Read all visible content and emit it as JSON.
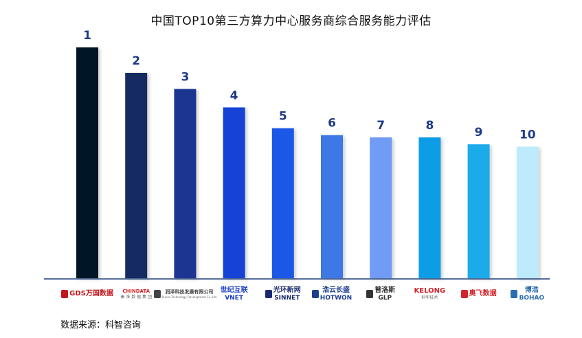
{
  "chart_data": {
    "type": "bar",
    "title": "中国TOP10第三方算力中心服务商综合服务能力评估",
    "categories": [
      "GDS万国数据",
      "CHINDATA 秦淮数据集团",
      "润泽科技发展有限公司",
      "世纪互联 VNET",
      "光环新网 SINNET",
      "浩云长盛 HOTWON",
      "普洛斯 GLP",
      "KELONG 科华技术",
      "奥飞数据",
      "博浩 BOHAO"
    ],
    "values": [
      100,
      89,
      82,
      74,
      65,
      62,
      61,
      61,
      58,
      57
    ],
    "data_labels": [
      "1",
      "2",
      "3",
      "4",
      "5",
      "6",
      "7",
      "8",
      "9",
      "10"
    ],
    "colors": [
      "#061528",
      "#172a62",
      "#1b3590",
      "#1443d6",
      "#1c59e8",
      "#3d78e4",
      "#6f9cf5",
      "#0d9ce6",
      "#1cabea",
      "#bdebfb"
    ],
    "ylim": [
      0,
      100
    ],
    "grid": false,
    "legend": "none"
  },
  "logos": [
    {
      "main": "GDS万国数据",
      "sub": "",
      "color": "#c4161c",
      "icon": "gds-logo-icon"
    },
    {
      "main": "CHINDATA",
      "sub": "秦 淮 数 据 集 团",
      "color": "#d2232a",
      "icon": ""
    },
    {
      "main": "润泽科技发展有限公司",
      "sub": "Runze Technology Development Co.,Ltd",
      "color": "#444444",
      "icon": "runze-logo-icon"
    },
    {
      "main": "世纪互联",
      "sub": "VNET",
      "color": "#1a3fc8",
      "icon": ""
    },
    {
      "main": "光环新网",
      "sub": "SINNET",
      "color": "#1a2a6e",
      "icon": "sinnet-logo-icon"
    },
    {
      "main": "浩云长盛",
      "sub": "HOTWON",
      "color": "#1d3f8f",
      "icon": "hotwon-logo-icon"
    },
    {
      "main": "普洛斯",
      "sub": "GLP",
      "color": "#333333",
      "icon": "glp-logo-icon"
    },
    {
      "main": "KELONG",
      "sub": "科华技术",
      "color": "#d2232a",
      "icon": ""
    },
    {
      "main": "奥飞数据",
      "sub": "",
      "color": "#d2232a",
      "icon": "aofei-logo-icon"
    },
    {
      "main": "博浩",
      "sub": "BOHAO",
      "color": "#2a6db0",
      "icon": "bohao-logo-icon"
    }
  ],
  "source_note": "数据来源：科智咨询"
}
